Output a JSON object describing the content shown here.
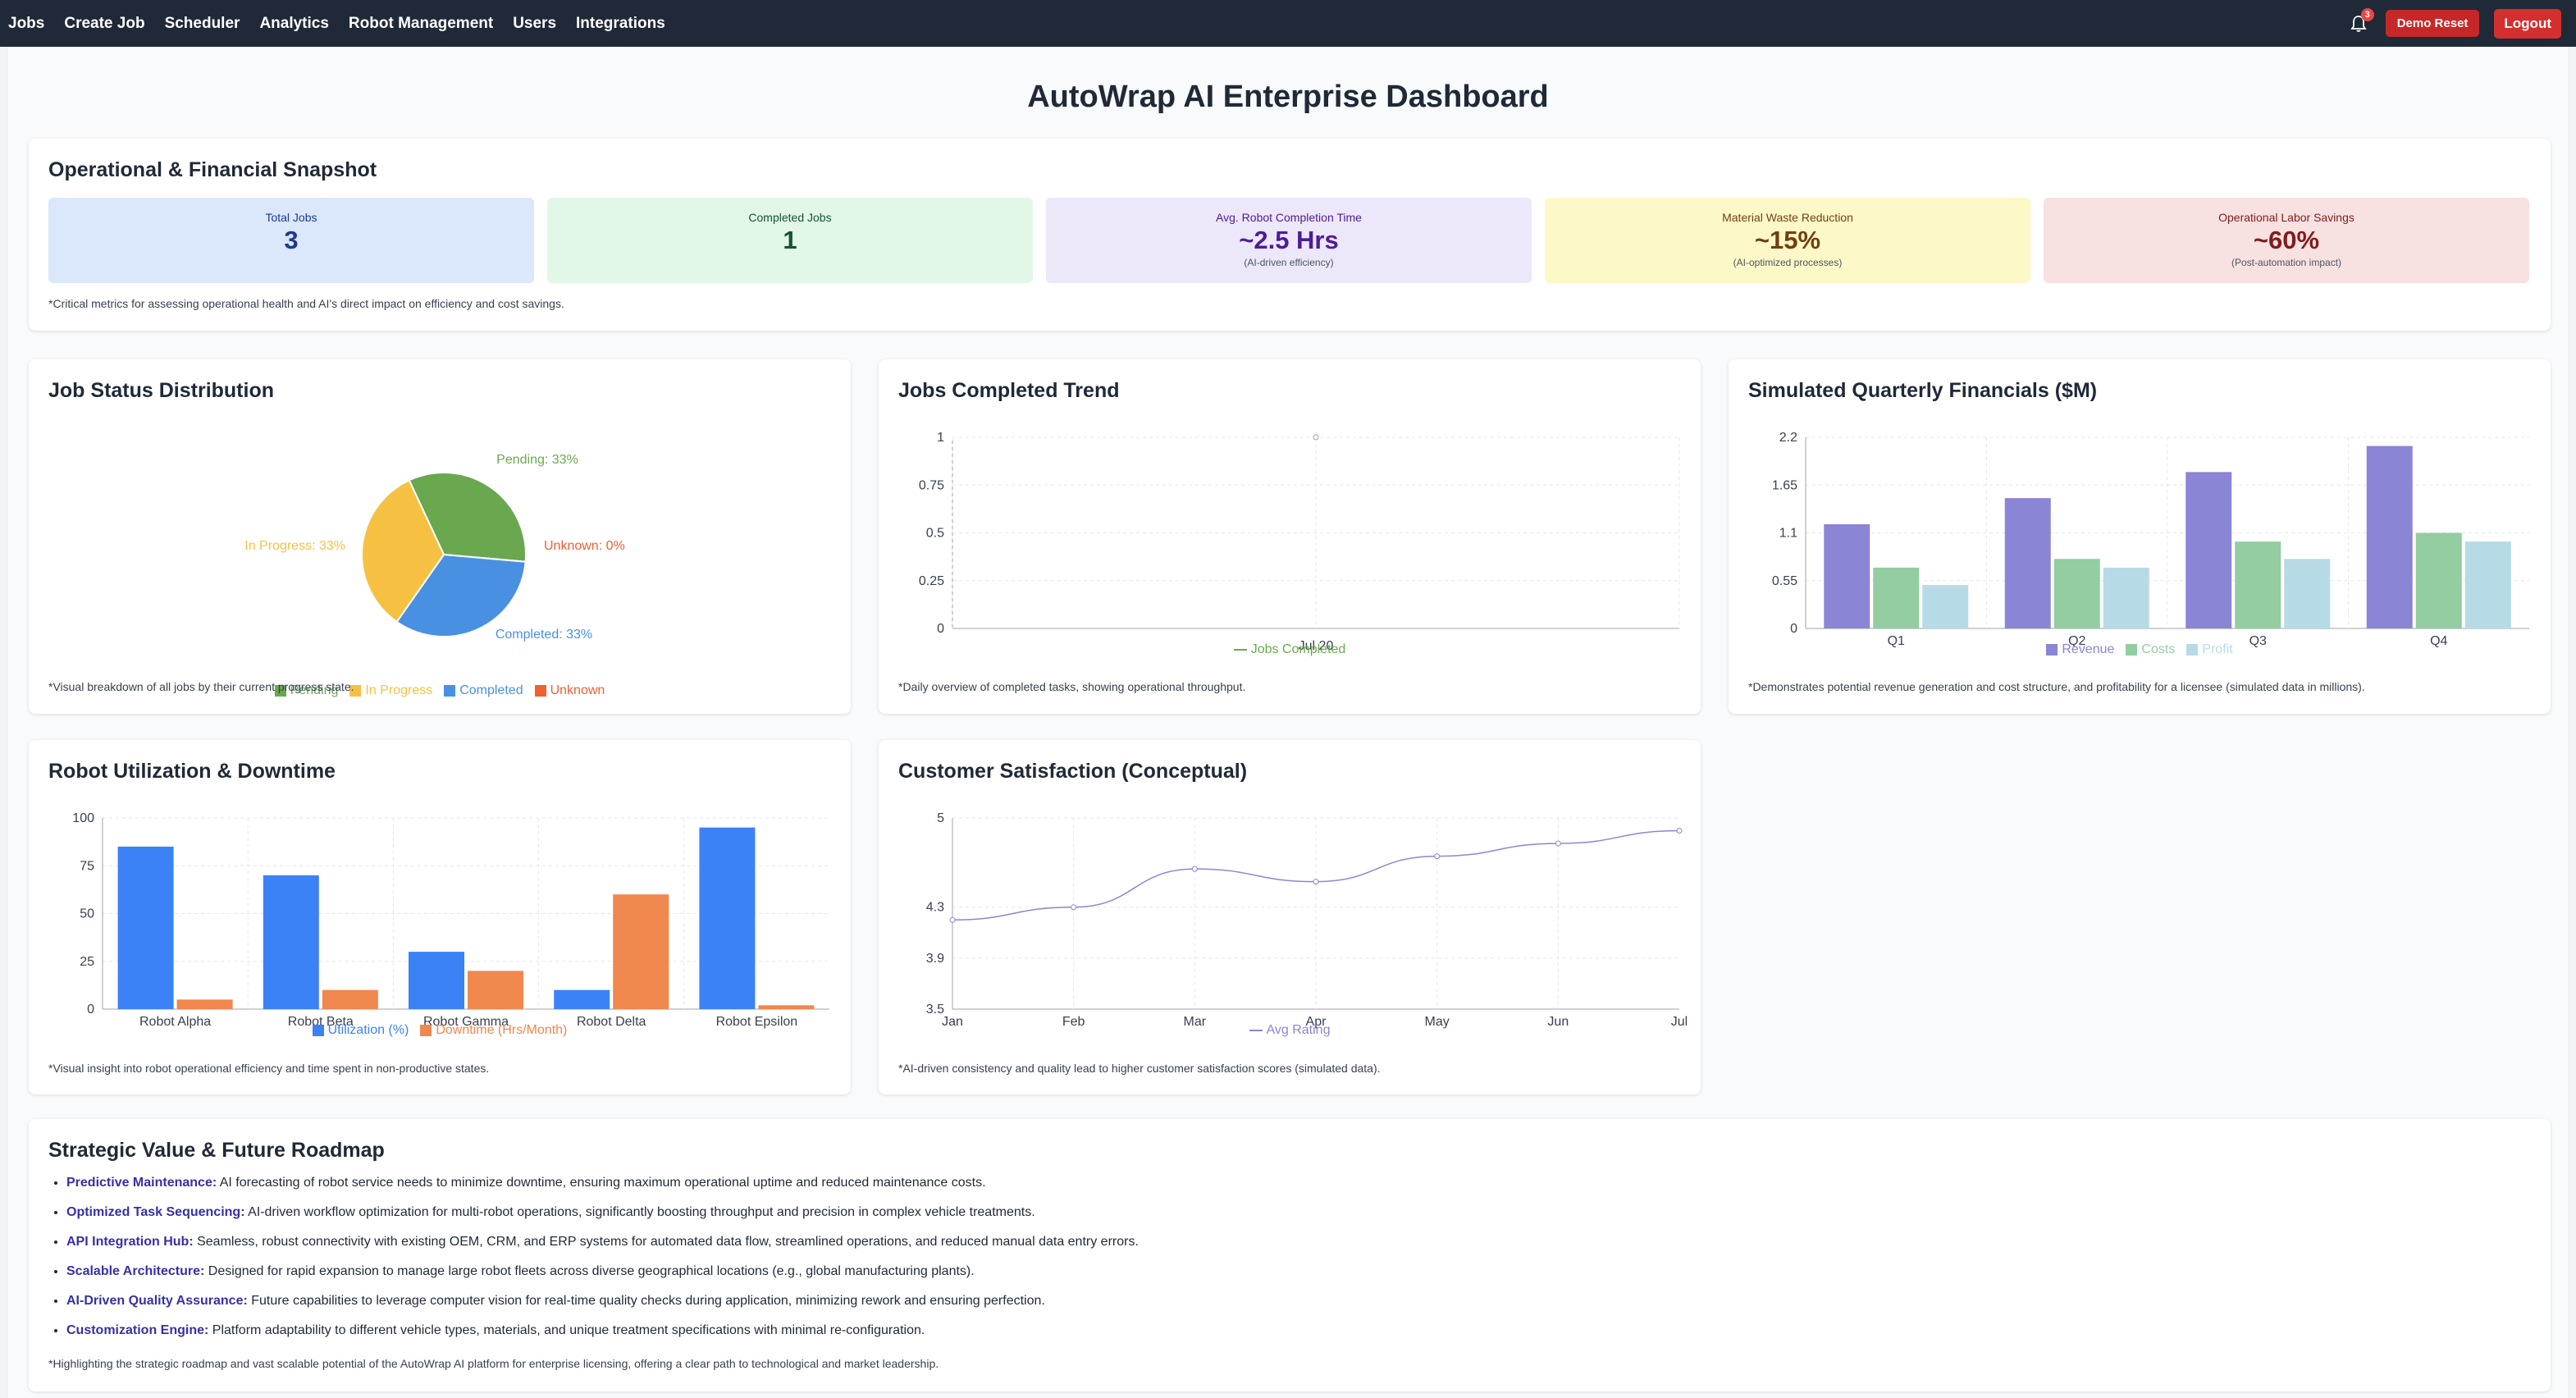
{
  "nav": {
    "links": [
      "Jobs",
      "Create Job",
      "Scheduler",
      "Analytics",
      "Robot Management",
      "Users",
      "Integrations"
    ],
    "notification_count": "3",
    "demo_reset_label": "Demo Reset",
    "logout_label": "Logout"
  },
  "page_title": "AutoWrap AI Enterprise Dashboard",
  "snapshot": {
    "title": "Operational & Financial Snapshot",
    "metrics": [
      {
        "label": "Total Jobs",
        "value": "3",
        "sub": "",
        "bg": "#dbe7fb",
        "color": "#1e3a8a"
      },
      {
        "label": "Completed Jobs",
        "value": "1",
        "sub": "",
        "bg": "#e2f7e8",
        "color": "#14532d"
      },
      {
        "label": "Avg. Robot Completion Time",
        "value": "~2.5 Hrs",
        "sub": "(AI-driven efficiency)",
        "bg": "#ede7fa",
        "color": "#4c1d95"
      },
      {
        "label": "Material Waste Reduction",
        "value": "~15%",
        "sub": "(AI-optimized processes)",
        "bg": "#fdf8c7",
        "color": "#713f12"
      },
      {
        "label": "Operational Labor Savings",
        "value": "~60%",
        "sub": "(Post-automation impact)",
        "bg": "#f8e1e1",
        "color": "#7f1d1d"
      }
    ],
    "note": "*Critical metrics for assessing operational health and AI's direct impact on efficiency and cost savings."
  },
  "job_status": {
    "title": "Job Status Distribution",
    "note": "*Visual breakdown of all jobs by their current progress state.",
    "slice_labels": [
      "Pending: 33%",
      "In Progress: 33%",
      "Completed: 33%",
      "Unknown: 0%"
    ]
  },
  "jobs_trend": {
    "title": "Jobs Completed Trend",
    "note": "*Daily overview of completed tasks, showing operational throughput."
  },
  "financials": {
    "title": "Simulated Quarterly Financials ($M)",
    "note": "*Demonstrates potential revenue generation and cost structure, and profitability for a licensee (simulated data in millions)."
  },
  "robots": {
    "title": "Robot Utilization & Downtime",
    "note": "*Visual insight into robot operational efficiency and time spent in non-productive states."
  },
  "satisfaction": {
    "title": "Customer Satisfaction (Conceptual)",
    "note": "*AI-driven consistency and quality lead to higher customer satisfaction scores (simulated data)."
  },
  "roadmap": {
    "title": "Strategic Value & Future Roadmap",
    "items": [
      {
        "key": "Predictive Maintenance:",
        "text": " AI forecasting of robot service needs to minimize downtime, ensuring maximum operational uptime and reduced maintenance costs."
      },
      {
        "key": "Optimized Task Sequencing:",
        "text": " AI-driven workflow optimization for multi-robot operations, significantly boosting throughput and precision in complex vehicle treatments."
      },
      {
        "key": "API Integration Hub:",
        "text": " Seamless, robust connectivity with existing OEM, CRM, and ERP systems for automated data flow, streamlined operations, and reduced manual data entry errors."
      },
      {
        "key": "Scalable Architecture:",
        "text": " Designed for rapid expansion to manage large robot fleets across diverse geographical locations (e.g., global manufacturing plants)."
      },
      {
        "key": "AI-Driven Quality Assurance:",
        "text": " Future capabilities to leverage computer vision for real-time quality checks during application, minimizing rework and ensuring perfection."
      },
      {
        "key": "Customization Engine:",
        "text": " Platform adaptability to different vehicle types, materials, and unique treatment specifications with minimal re-configuration."
      }
    ],
    "note": "*Highlighting the strategic roadmap and vast scalable potential of the AutoWrap AI platform for enterprise licensing, offering a clear path to technological and market leadership."
  },
  "chart_data": [
    {
      "type": "pie",
      "title": "Job Status Distribution",
      "categories": [
        "Pending",
        "In Progress",
        "Completed",
        "Unknown"
      ],
      "values": [
        33.33,
        33.33,
        33.33,
        0
      ],
      "colors": [
        "#6aa84f",
        "#f6c142",
        "#4a90e2",
        "#f06030"
      ],
      "legend": "bottom"
    },
    {
      "type": "line",
      "title": "Jobs Completed Trend",
      "x": [
        "Jul 20"
      ],
      "series": [
        {
          "name": "Jobs Completed",
          "values": [
            1
          ],
          "color": "#6aa84f"
        }
      ],
      "ylim": [
        0,
        1
      ],
      "yticks": [
        "0",
        "0.25",
        "0.5",
        "0.75",
        "1"
      ],
      "grid": true,
      "legend": "bottom"
    },
    {
      "type": "bar",
      "title": "Simulated Quarterly Financials ($M)",
      "categories": [
        "Q1",
        "Q2",
        "Q3",
        "Q4"
      ],
      "series": [
        {
          "name": "Revenue",
          "values": [
            1.2,
            1.5,
            1.8,
            2.1
          ],
          "color": "#8b85d6"
        },
        {
          "name": "Costs",
          "values": [
            0.7,
            0.8,
            1.0,
            1.1
          ],
          "color": "#93cda0"
        },
        {
          "name": "Profit",
          "values": [
            0.5,
            0.7,
            0.8,
            1.0
          ],
          "color": "#b6dbe6"
        }
      ],
      "ylim": [
        0,
        2.2
      ],
      "yticks": [
        "0",
        "0.55",
        "1.1",
        "1.65",
        "2.2"
      ],
      "grid": true,
      "legend": "bottom"
    },
    {
      "type": "bar",
      "title": "Robot Utilization & Downtime",
      "categories": [
        "Robot Alpha",
        "Robot Beta",
        "Robot Gamma",
        "Robot Delta",
        "Robot Epsilon"
      ],
      "series": [
        {
          "name": "Utilization (%)",
          "values": [
            85,
            70,
            30,
            10,
            95
          ],
          "color": "#3b82f6"
        },
        {
          "name": "Downtime (Hrs/Month)",
          "values": [
            5,
            10,
            20,
            60,
            2
          ],
          "color": "#f0874d"
        }
      ],
      "ylim": [
        0,
        100
      ],
      "yticks": [
        "0",
        "25",
        "50",
        "75",
        "100"
      ],
      "grid": true,
      "legend": "bottom"
    },
    {
      "type": "line",
      "title": "Customer Satisfaction (Conceptual)",
      "x": [
        "Jan",
        "Feb",
        "Mar",
        "Apr",
        "May",
        "Jun",
        "Jul"
      ],
      "series": [
        {
          "name": "Avg Rating",
          "values": [
            4.2,
            4.3,
            4.6,
            4.5,
            4.7,
            4.8,
            4.9
          ],
          "color": "#8b85d6"
        }
      ],
      "ylim": [
        3.5,
        5
      ],
      "yticks": [
        "3.5",
        "3.9",
        "4.3",
        "5"
      ],
      "grid": true,
      "legend": "bottom"
    }
  ]
}
